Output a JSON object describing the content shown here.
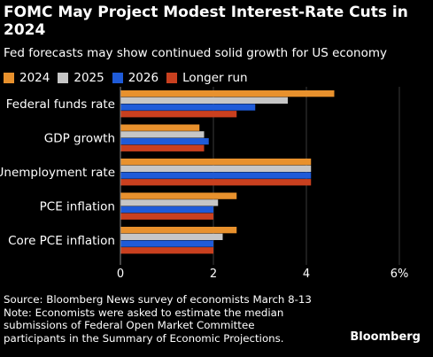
{
  "header": {
    "title": "FOMC May Project Modest Interest-Rate Cuts in 2024",
    "subtitle": "Fed forecasts may show continued solid growth for US economy"
  },
  "legend": [
    {
      "label": "2024",
      "color": "#e8912d"
    },
    {
      "label": "2025",
      "color": "#c6c6c6"
    },
    {
      "label": "2026",
      "color": "#1f5bd8"
    },
    {
      "label": "Longer run",
      "color": "#c9401f"
    }
  ],
  "chart_data": {
    "type": "bar",
    "orientation": "horizontal",
    "categories": [
      "Federal funds rate",
      "GDP growth",
      "Unemployment rate",
      "PCE inflation",
      "Core PCE inflation"
    ],
    "series": [
      {
        "name": "2024",
        "values": [
          4.6,
          1.7,
          4.1,
          2.5,
          2.5
        ]
      },
      {
        "name": "2025",
        "values": [
          3.6,
          1.8,
          4.1,
          2.1,
          2.2
        ]
      },
      {
        "name": "2026",
        "values": [
          2.9,
          1.9,
          4.1,
          2.0,
          2.0
        ]
      },
      {
        "name": "Longer run",
        "values": [
          2.5,
          1.8,
          4.1,
          2.0,
          2.0
        ]
      }
    ],
    "x_ticks": [
      "0",
      "2",
      "4",
      "6%"
    ],
    "xlim": [
      0,
      6
    ],
    "grid": true,
    "legend_position": "top-left"
  },
  "footer": {
    "source": "Source: Bloomberg News survey of economists March 8-13",
    "note_lines": [
      "Note: Economists were asked to estimate the median",
      "submissions of Federal Open Market Committee",
      "participants in the Summary of Economic Projections."
    ]
  },
  "brand": "Bloomberg"
}
